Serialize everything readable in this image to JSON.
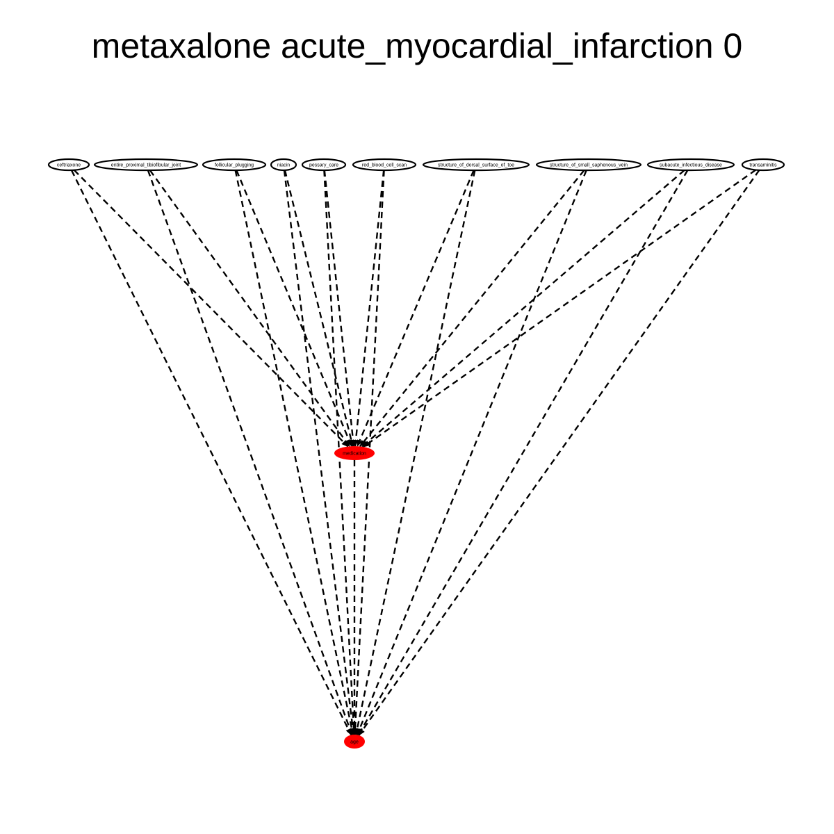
{
  "title": "metaxalone acute_myocardial_infarction 0",
  "colors": {
    "highlight": "#ff0000",
    "edge": "#000000",
    "outline": "#000000"
  },
  "nodes": [
    {
      "id": "ceftriaxone",
      "label": "ceftriaxone",
      "highlighted": false
    },
    {
      "id": "entire_proximal_tibiofibular_joint",
      "label": "entire_proximal_tibiofibular_joint",
      "highlighted": false
    },
    {
      "id": "follicular_plugging",
      "label": "follicular_plugging",
      "highlighted": false
    },
    {
      "id": "niacin",
      "label": "niacin",
      "highlighted": false
    },
    {
      "id": "pessary_care",
      "label": "pessary_care",
      "highlighted": false
    },
    {
      "id": "red_blood_cell_scan",
      "label": "red_blood_cell_scan",
      "highlighted": false
    },
    {
      "id": "structure_of_dorsal_surface_of_toe",
      "label": "structure_of_dorsal_surface_of_toe",
      "highlighted": false
    },
    {
      "id": "structure_of_small_saphenous_vein",
      "label": "structure_of_small_saphenous_vein",
      "highlighted": false
    },
    {
      "id": "subacute_infectious_disease",
      "label": "subacute_infectious_disease",
      "highlighted": false
    },
    {
      "id": "transaminitis",
      "label": "transaminitis",
      "highlighted": false
    },
    {
      "id": "medication",
      "label": "medication",
      "highlighted": true
    },
    {
      "id": "age",
      "label": "age",
      "highlighted": true
    }
  ],
  "edges": [
    {
      "from": "ceftriaxone",
      "to": "medication",
      "style": "dashed"
    },
    {
      "from": "ceftriaxone",
      "to": "age",
      "style": "dashed"
    },
    {
      "from": "entire_proximal_tibiofibular_joint",
      "to": "medication",
      "style": "dashed"
    },
    {
      "from": "entire_proximal_tibiofibular_joint",
      "to": "age",
      "style": "dashed"
    },
    {
      "from": "follicular_plugging",
      "to": "medication",
      "style": "dashed"
    },
    {
      "from": "follicular_plugging",
      "to": "age",
      "style": "dashed"
    },
    {
      "from": "niacin",
      "to": "medication",
      "style": "dashed"
    },
    {
      "from": "niacin",
      "to": "age",
      "style": "dashed"
    },
    {
      "from": "pessary_care",
      "to": "medication",
      "style": "dashed"
    },
    {
      "from": "pessary_care",
      "to": "age",
      "style": "dashed"
    },
    {
      "from": "red_blood_cell_scan",
      "to": "medication",
      "style": "dashed"
    },
    {
      "from": "red_blood_cell_scan",
      "to": "age",
      "style": "dashed"
    },
    {
      "from": "structure_of_dorsal_surface_of_toe",
      "to": "medication",
      "style": "dashed"
    },
    {
      "from": "structure_of_dorsal_surface_of_toe",
      "to": "age",
      "style": "dashed"
    },
    {
      "from": "structure_of_small_saphenous_vein",
      "to": "medication",
      "style": "dashed"
    },
    {
      "from": "structure_of_small_saphenous_vein",
      "to": "age",
      "style": "dashed"
    },
    {
      "from": "subacute_infectious_disease",
      "to": "medication",
      "style": "dashed"
    },
    {
      "from": "subacute_infectious_disease",
      "to": "age",
      "style": "dashed"
    },
    {
      "from": "transaminitis",
      "to": "medication",
      "style": "dashed"
    },
    {
      "from": "transaminitis",
      "to": "age",
      "style": "dashed"
    },
    {
      "from": "medication",
      "to": "age",
      "style": "dashed"
    }
  ]
}
